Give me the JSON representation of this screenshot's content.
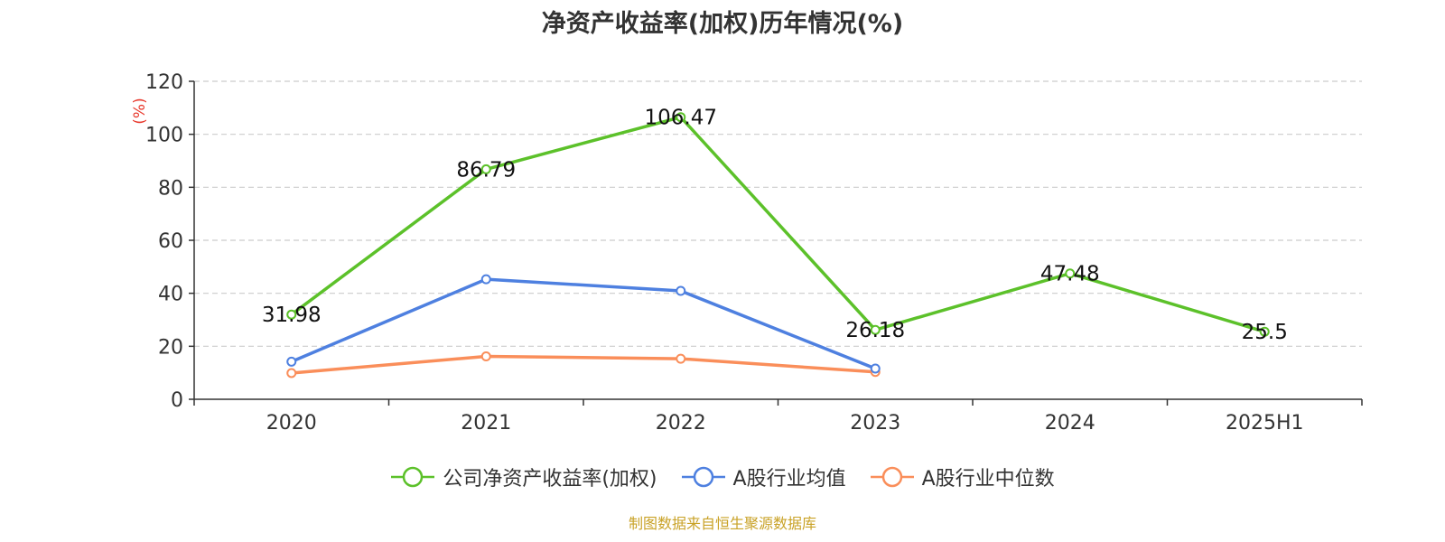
{
  "chart_data": {
    "type": "line",
    "title": "净资产收益率(加权)历年情况(%)",
    "ylabel": "(%)",
    "xlabel": "",
    "ylim": [
      0,
      120
    ],
    "yticks": [
      0,
      20,
      40,
      60,
      80,
      100,
      120
    ],
    "categories": [
      "2020",
      "2021",
      "2022",
      "2023",
      "2024",
      "2025H1"
    ],
    "grid": "horizontal dashed",
    "legend_position": "bottom",
    "series": [
      {
        "name": "公司净资产收益率(加权)",
        "color": "#5cc12a",
        "values": [
          31.98,
          86.79,
          106.47,
          26.18,
          47.48,
          25.5
        ],
        "labels": [
          "31.98",
          "86.79",
          "106.47",
          "26.18",
          "47.48",
          "25.5"
        ]
      },
      {
        "name": "A股行业均值",
        "color": "#4e80e0",
        "values": [
          14.2,
          45.3,
          40.9,
          11.6,
          null,
          null
        ]
      },
      {
        "name": "A股行业中位数",
        "color": "#fa8e5a",
        "values": [
          9.9,
          16.2,
          15.3,
          10.3,
          null,
          null
        ]
      }
    ]
  },
  "footer": {
    "source": "制图数据来自恒生聚源数据库"
  }
}
